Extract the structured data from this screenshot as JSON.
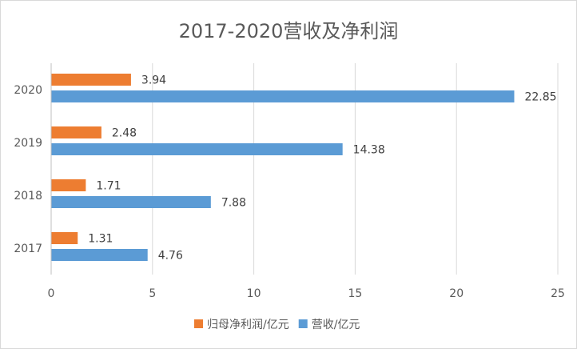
{
  "chart_data": {
    "type": "bar",
    "orientation": "horizontal",
    "title": "2017-2020营收及净利润",
    "categories": [
      "2017",
      "2018",
      "2019",
      "2020"
    ],
    "series": [
      {
        "name": "归母净利润/亿元",
        "color": "#ed7d31",
        "values": [
          1.31,
          1.71,
          2.48,
          3.94
        ]
      },
      {
        "name": "营收/亿元",
        "color": "#5b9bd5",
        "values": [
          4.76,
          7.88,
          14.38,
          22.85
        ]
      }
    ],
    "xlim": [
      0,
      25
    ],
    "xticks": [
      0,
      5,
      10,
      15,
      20,
      25
    ],
    "grid": true,
    "legend_position": "bottom"
  }
}
